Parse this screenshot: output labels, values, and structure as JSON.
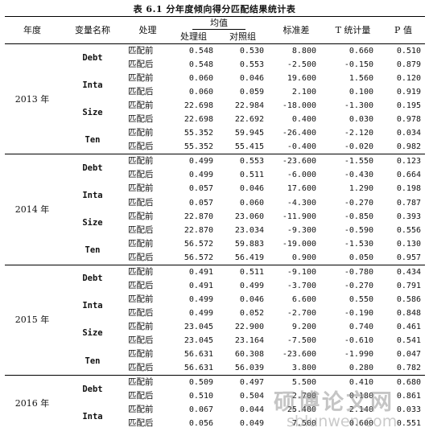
{
  "title": "表 6.1 分年度倾向得分匹配结果统计表",
  "headers": {
    "year": "年度",
    "var": "变量名称",
    "treat": "处理",
    "mean": "均值",
    "treated": "处理组",
    "control": "对照组",
    "bias": "标准差",
    "t": "T 统计量",
    "p": "P 值"
  },
  "groups": [
    {
      "year": "2013 年",
      "vars": [
        {
          "name": "Debt",
          "rows": [
            {
              "state": "匹配前",
              "treated": "0.548",
              "control": "0.530",
              "bias": "8.800",
              "t": "0.660",
              "p": "0.510"
            },
            {
              "state": "匹配后",
              "treated": "0.548",
              "control": "0.553",
              "bias": "-2.500",
              "t": "-0.150",
              "p": "0.879"
            }
          ]
        },
        {
          "name": "Inta",
          "rows": [
            {
              "state": "匹配前",
              "treated": "0.060",
              "control": "0.046",
              "bias": "19.600",
              "t": "1.560",
              "p": "0.120"
            },
            {
              "state": "匹配后",
              "treated": "0.060",
              "control": "0.059",
              "bias": "2.100",
              "t": "0.100",
              "p": "0.919"
            }
          ]
        },
        {
          "name": "Size",
          "rows": [
            {
              "state": "匹配前",
              "treated": "22.698",
              "control": "22.984",
              "bias": "-18.000",
              "t": "-1.300",
              "p": "0.195"
            },
            {
              "state": "匹配后",
              "treated": "22.698",
              "control": "22.692",
              "bias": "0.400",
              "t": "0.030",
              "p": "0.978"
            }
          ]
        },
        {
          "name": "Ten",
          "rows": [
            {
              "state": "匹配前",
              "treated": "55.352",
              "control": "59.945",
              "bias": "-26.400",
              "t": "-2.120",
              "p": "0.034"
            },
            {
              "state": "匹配后",
              "treated": "55.352",
              "control": "55.415",
              "bias": "-0.400",
              "t": "-0.020",
              "p": "0.982"
            }
          ]
        }
      ]
    },
    {
      "year": "2014 年",
      "vars": [
        {
          "name": "Debt",
          "rows": [
            {
              "state": "匹配前",
              "treated": "0.499",
              "control": "0.553",
              "bias": "-23.600",
              "t": "-1.550",
              "p": "0.123"
            },
            {
              "state": "匹配后",
              "treated": "0.499",
              "control": "0.511",
              "bias": "-6.000",
              "t": "-0.430",
              "p": "0.664"
            }
          ]
        },
        {
          "name": "Inta",
          "rows": [
            {
              "state": "匹配前",
              "treated": "0.057",
              "control": "0.046",
              "bias": "17.600",
              "t": "1.290",
              "p": "0.198"
            },
            {
              "state": "匹配后",
              "treated": "0.057",
              "control": "0.060",
              "bias": "-4.300",
              "t": "-0.270",
              "p": "0.787"
            }
          ]
        },
        {
          "name": "Size",
          "rows": [
            {
              "state": "匹配前",
              "treated": "22.870",
              "control": "23.060",
              "bias": "-11.900",
              "t": "-0.850",
              "p": "0.393"
            },
            {
              "state": "匹配后",
              "treated": "22.870",
              "control": "23.034",
              "bias": "-9.300",
              "t": "-0.590",
              "p": "0.556"
            }
          ]
        },
        {
          "name": "Ten",
          "rows": [
            {
              "state": "匹配前",
              "treated": "56.572",
              "control": "59.883",
              "bias": "-19.000",
              "t": "-1.530",
              "p": "0.130"
            },
            {
              "state": "匹配后",
              "treated": "56.572",
              "control": "56.419",
              "bias": "0.900",
              "t": "0.050",
              "p": "0.957"
            }
          ]
        }
      ]
    },
    {
      "year": "2015 年",
      "vars": [
        {
          "name": "Debt",
          "rows": [
            {
              "state": "匹配前",
              "treated": "0.491",
              "control": "0.511",
              "bias": "-9.100",
              "t": "-0.780",
              "p": "0.434"
            },
            {
              "state": "匹配后",
              "treated": "0.491",
              "control": "0.499",
              "bias": "-3.700",
              "t": "-0.270",
              "p": "0.791"
            }
          ]
        },
        {
          "name": "Inta",
          "rows": [
            {
              "state": "匹配前",
              "treated": "0.499",
              "control": "0.046",
              "bias": "6.600",
              "t": "0.550",
              "p": "0.586"
            },
            {
              "state": "匹配后",
              "treated": "0.499",
              "control": "0.052",
              "bias": "-2.700",
              "t": "-0.190",
              "p": "0.848"
            }
          ]
        },
        {
          "name": "Size",
          "rows": [
            {
              "state": "匹配前",
              "treated": "23.045",
              "control": "22.900",
              "bias": "9.200",
              "t": "0.740",
              "p": "0.461"
            },
            {
              "state": "匹配后",
              "treated": "23.045",
              "control": "23.164",
              "bias": "-7.500",
              "t": "-0.610",
              "p": "0.541"
            }
          ]
        },
        {
          "name": "Ten",
          "rows": [
            {
              "state": "匹配前",
              "treated": "56.631",
              "control": "60.308",
              "bias": "-23.600",
              "t": "-1.990",
              "p": "0.047"
            },
            {
              "state": "匹配后",
              "treated": "56.631",
              "control": "56.039",
              "bias": "3.800",
              "t": "0.280",
              "p": "0.782"
            }
          ]
        }
      ]
    },
    {
      "year": "2016 年",
      "vars": [
        {
          "name": "Debt",
          "rows": [
            {
              "state": "匹配前",
              "treated": "0.509",
              "control": "0.497",
              "bias": "5.500",
              "t": "0.410",
              "p": "0.680"
            },
            {
              "state": "匹配后",
              "treated": "0.510",
              "control": "0.504",
              "bias": "2.700",
              "t": "0.180",
              "p": "0.861"
            }
          ]
        },
        {
          "name": "Inta",
          "rows": [
            {
              "state": "匹配前",
              "treated": "0.067",
              "control": "0.044",
              "bias": "25.400",
              "t": "2.140",
              "p": "0.033"
            },
            {
              "state": "匹配后",
              "treated": "0.056",
              "control": "0.049",
              "bias": "7.500",
              "t": "0.600",
              "p": "0.551"
            }
          ]
        }
      ]
    }
  ],
  "watermark": {
    "cn": "硕博论文网",
    "en": "sblunwen.com"
  }
}
